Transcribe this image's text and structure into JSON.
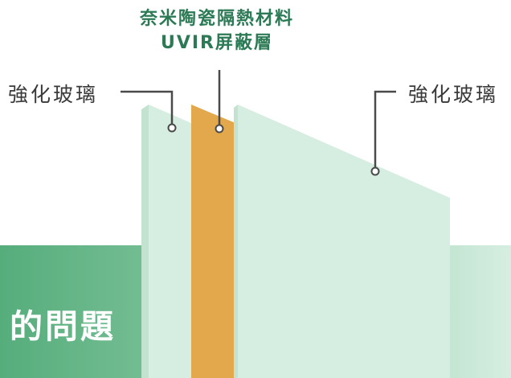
{
  "title": {
    "line1": "奈米陶瓷隔熱材料",
    "line2": "UVIR屏蔽層"
  },
  "labels": {
    "left": "強化玻璃",
    "right": "強化玻璃"
  },
  "banner": {
    "text": "的問題"
  },
  "colors": {
    "glass": "#d6eee1",
    "glass_shadow": "#c3e2d0",
    "core_layer": "#e2a84b",
    "title_green": "#2c7a55",
    "banner_green": "#56ad7c",
    "line": "#4a4a4a"
  }
}
